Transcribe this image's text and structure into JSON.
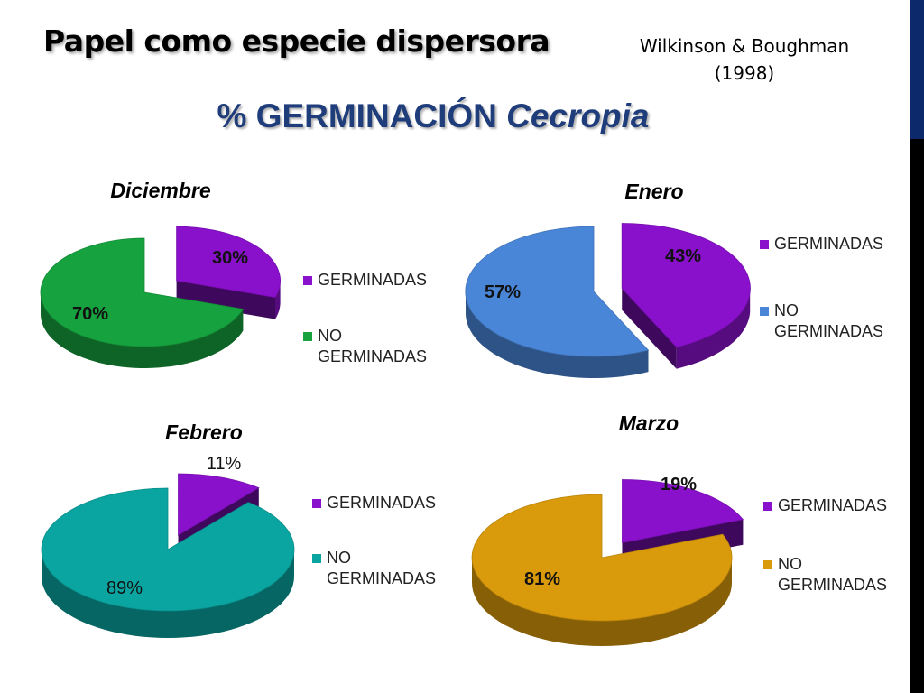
{
  "slide": {
    "title": "Papel como especie dispersora",
    "citation_line1": "Wilkinson & Boughman",
    "citation_line2": "(1998)",
    "headline_prefix": "% GERMINACIÓN",
    "headline_species": "Cecropia"
  },
  "colors": {
    "sidebar_top": "#0c2a6b",
    "sidebar_bottom": "#000000",
    "headline": "#1f3d7a",
    "germinadas": "#8a11cc"
  },
  "chart_data": [
    {
      "type": "pie",
      "title": "Diciembre",
      "categories": [
        "GERMINADAS",
        "NO GERMINADAS"
      ],
      "values": [
        30,
        70
      ],
      "labels": [
        "30%",
        "70%"
      ],
      "colors": [
        "#8a11cc",
        "#16a23e"
      ],
      "legend": "right",
      "exploded_slice": "GERMINADAS"
    },
    {
      "type": "pie",
      "title": "Enero",
      "categories": [
        "GERMINADAS",
        "NO GERMINADAS"
      ],
      "values": [
        43,
        57
      ],
      "labels": [
        "43%",
        "57%"
      ],
      "colors": [
        "#8a11cc",
        "#4a86d8"
      ],
      "legend": "right",
      "exploded_slice": "GERMINADAS"
    },
    {
      "type": "pie",
      "title": "Febrero",
      "categories": [
        "GERMINADAS",
        "NO GERMINADAS"
      ],
      "values": [
        11,
        89
      ],
      "labels": [
        "11%",
        "89%"
      ],
      "colors": [
        "#8a11cc",
        "#0aa5a0"
      ],
      "legend": "right",
      "exploded_slice": "GERMINADAS"
    },
    {
      "type": "pie",
      "title": "Marzo",
      "categories": [
        "GERMINADAS",
        "NO GERMINADAS"
      ],
      "values": [
        19,
        81
      ],
      "labels": [
        "19%",
        "81%"
      ],
      "colors": [
        "#8a11cc",
        "#d99a0c"
      ],
      "legend": "right",
      "exploded_slice": "GERMINADAS"
    }
  ]
}
